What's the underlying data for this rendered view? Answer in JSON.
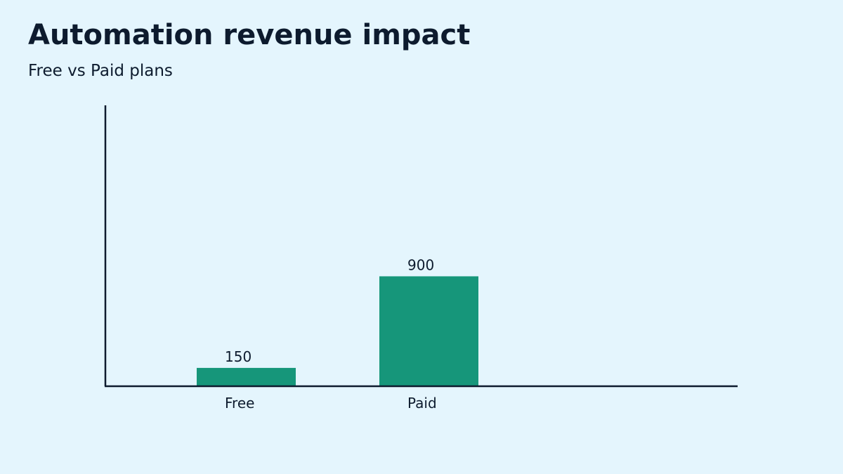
{
  "header": {
    "title": "Automation revenue impact",
    "subtitle": "Free vs Paid plans"
  },
  "colors": {
    "background": "#e4f5fd",
    "bar": "#16967a",
    "axis": "#0d1b2e",
    "text": "#0d1b2e"
  },
  "chart_data": {
    "type": "bar",
    "title": "Automation revenue impact",
    "subtitle": "Free vs Paid plans",
    "categories": [
      "Free",
      "Paid"
    ],
    "values": [
      150,
      900
    ],
    "data_labels": [
      "150",
      "900"
    ],
    "xlabel": "",
    "ylabel": "",
    "ylim": [
      0,
      2300
    ],
    "grid": false,
    "legend": "none"
  }
}
